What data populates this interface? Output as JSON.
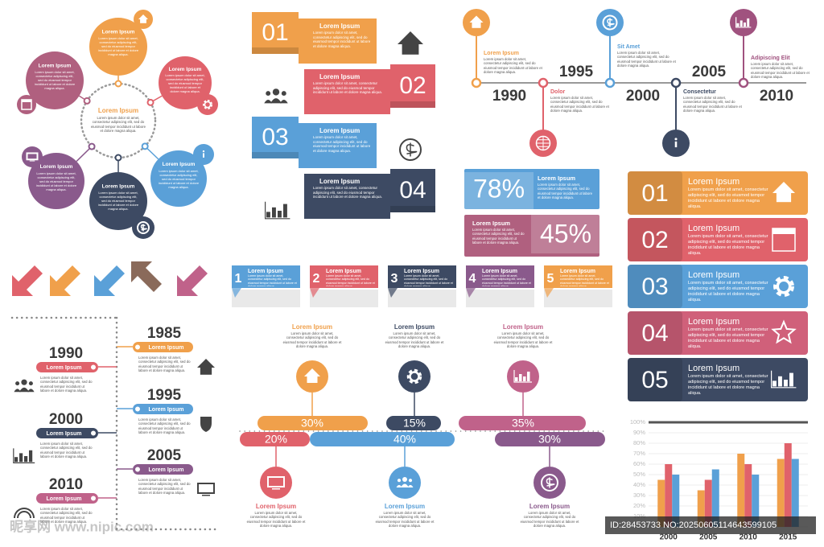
{
  "lorem": "Lorem ipsum dolor sit amet, consectetur adipiscing elit, sed do eiusmod tempor incididunt ut labore et dolore magna aliqua.",
  "circle_diagram": {
    "center": "Lorem Ipsum",
    "nodes": [
      "Lorem Ipsum",
      "Lorem Ipsum",
      "Lorem Ipsum",
      "Lorem Ipsum",
      "Lorem Ipsum",
      "Lorem Ipsum"
    ]
  },
  "numbered_ribbons": [
    {
      "number": "01",
      "title": "Lorem Ipsum"
    },
    {
      "number": "02",
      "title": "Lorem Ipsum"
    },
    {
      "number": "03",
      "title": "Lorem Ipsum"
    },
    {
      "number": "04",
      "title": "Lorem Ipsum"
    }
  ],
  "year_timeline": [
    {
      "year": "1990",
      "label": "Lorem Ipsum"
    },
    {
      "year": "1995",
      "label": "Dolor"
    },
    {
      "year": "2000",
      "label": "Sit Amet"
    },
    {
      "year": "2005",
      "label": "Consectetur"
    },
    {
      "year": "2010",
      "label": "Adipiscing Elit"
    }
  ],
  "progress": [
    {
      "percent": "78%",
      "title": "Lorem Ipsum"
    },
    {
      "percent": "45%",
      "title": "Lorem Ipsum"
    }
  ],
  "steps": [
    {
      "number": "01",
      "title": "Lorem Ipsum"
    },
    {
      "number": "02",
      "title": "Lorem Ipsum"
    },
    {
      "number": "03",
      "title": "Lorem Ipsum"
    },
    {
      "number": "04",
      "title": "Lorem Ipsum"
    },
    {
      "number": "05",
      "title": "Lorem Ipsum"
    }
  ],
  "tabs": [
    {
      "number": "1",
      "title": "Lorem Ipsum"
    },
    {
      "number": "2",
      "title": "Lorem Ipsum"
    },
    {
      "number": "3",
      "title": "Lorem Ipsum"
    },
    {
      "number": "4",
      "title": "Lorem Ipsum"
    },
    {
      "number": "5",
      "title": "Lorem Ipsum"
    }
  ],
  "vertical_timeline": [
    {
      "year": "1985",
      "label": "Lorem Ipsum"
    },
    {
      "year": "1990",
      "label": "Lorem Ipsum"
    },
    {
      "year": "1995",
      "label": "Lorem Ipsum"
    },
    {
      "year": "2000",
      "label": "Lorem Ipsum"
    },
    {
      "year": "2005",
      "label": "Lorem Ipsum"
    },
    {
      "year": "2010",
      "label": "Lorem Ipsum"
    }
  ],
  "flow": {
    "top": [
      {
        "title": "Lorem Ipsum",
        "percent": "30%"
      },
      {
        "title": "Lorem Ipsum",
        "percent": "15%"
      },
      {
        "title": "Lorem Ipsum",
        "percent": "35%"
      }
    ],
    "bottom": [
      {
        "title": "Lorem Ipsum",
        "percent": "20%"
      },
      {
        "title": "Lorem Ipsum",
        "percent": "40%"
      },
      {
        "title": "Lorem Ipsum",
        "percent": "30%"
      }
    ]
  },
  "chart_data": {
    "type": "bar",
    "categories": [
      "2000",
      "2005",
      "2010",
      "2015"
    ],
    "series": [
      {
        "color": "#f0a04b",
        "values": [
          45,
          35,
          70,
          65
        ]
      },
      {
        "color": "#e0626b",
        "values": [
          60,
          45,
          60,
          80
        ]
      },
      {
        "color": "#5aa0d8",
        "values": [
          50,
          55,
          50,
          65
        ]
      }
    ],
    "ylim": [
      0,
      100
    ],
    "yticks": [
      {
        "value": 0,
        "label": "0%"
      },
      {
        "value": 10,
        "label": "10%"
      },
      {
        "value": 20,
        "label": "20%"
      },
      {
        "value": 30,
        "label": "30%"
      },
      {
        "value": 40,
        "label": "40%"
      },
      {
        "value": 50,
        "label": "50%"
      },
      {
        "value": 60,
        "label": "60%"
      },
      {
        "value": 70,
        "label": "70%"
      },
      {
        "value": 80,
        "label": "80%"
      },
      {
        "value": 90,
        "label": "90%"
      },
      {
        "value": 100,
        "label": "100%"
      }
    ],
    "grid": true
  },
  "watermark": {
    "id": "ID:28453733 NO:20250605114643599105",
    "site": "昵享网 www.nipic.com"
  }
}
